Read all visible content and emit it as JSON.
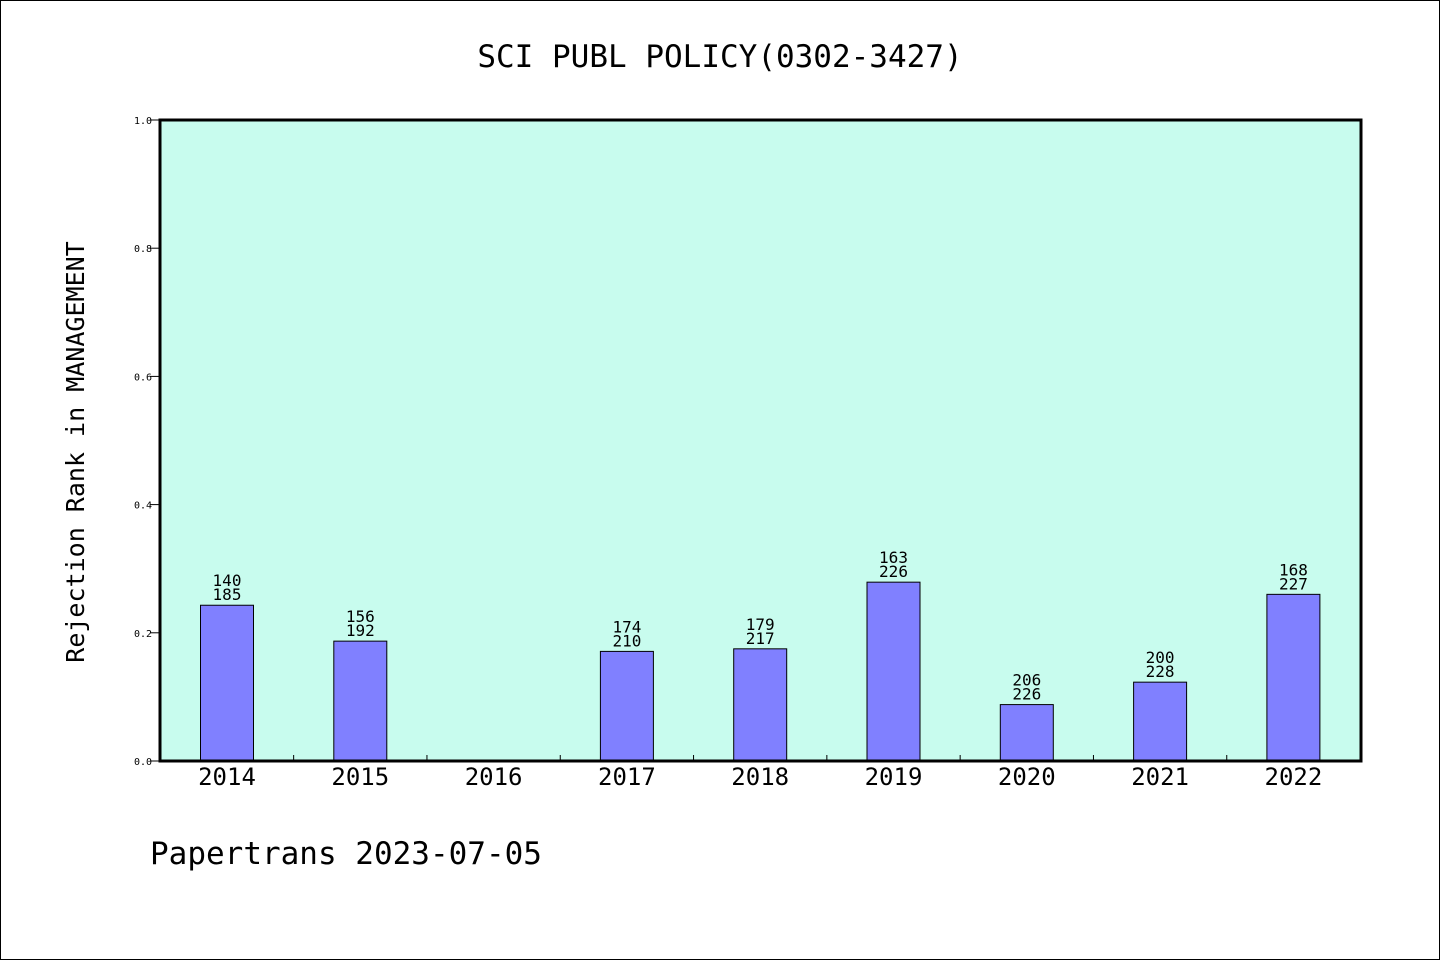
{
  "chart_data": {
    "type": "bar",
    "title": "SCI PUBL POLICY(0302-3427)",
    "xlabel": "",
    "ylabel": "Rejection Rank in MANAGEMENT",
    "ylim": [
      0,
      1.0
    ],
    "yticks": [
      "0.0",
      "0.2",
      "0.4",
      "0.6",
      "0.8",
      "1.0"
    ],
    "categories": [
      "2014",
      "2015",
      "2016",
      "2017",
      "2018",
      "2019",
      "2020",
      "2021",
      "2022"
    ],
    "series": [
      {
        "values": [
          0.243,
          0.187,
          null,
          0.171,
          0.175,
          0.279,
          0.088,
          0.123,
          0.26
        ],
        "rank": [
          "140",
          "156",
          null,
          "174",
          "179",
          "163",
          "206",
          "200",
          "168"
        ],
        "total": [
          "185",
          "192",
          null,
          "210",
          "217",
          "226",
          "226",
          "228",
          "227"
        ]
      }
    ],
    "grid": false,
    "legend": "none",
    "colors": {
      "plot_background": "#c8fcee",
      "bar_fill": "#8080ff",
      "bar_stroke": "#000000",
      "axis": "#000000"
    }
  },
  "footer": {
    "text": "Papertrans 2023-07-05"
  }
}
